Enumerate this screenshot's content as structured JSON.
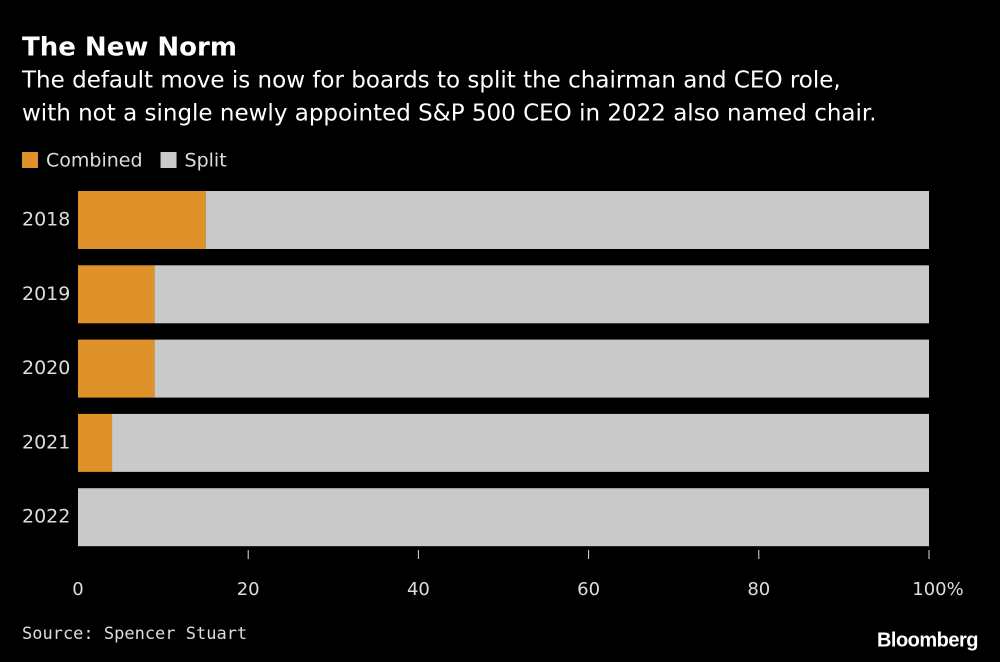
{
  "chart_data": {
    "type": "stacked-barh",
    "title": "The New Norm",
    "subtitle": [
      "The default move is now for boards to split the chairman and CEO role,",
      "with not a single newly appointed S&P 500 CEO in 2022 also named chair."
    ],
    "categories": [
      "2018",
      "2019",
      "2020",
      "2021",
      "2022"
    ],
    "series": [
      {
        "name": "Combined",
        "color": "#e0922a",
        "values": [
          15,
          9,
          9,
          4,
          0
        ]
      },
      {
        "name": "Split",
        "color": "#c9c9c9",
        "values": [
          85,
          91,
          91,
          96,
          100
        ]
      }
    ],
    "xlim": [
      0,
      100
    ],
    "xticks": [
      0,
      20,
      40,
      60,
      80,
      {
        "value": 100,
        "label": "100%"
      }
    ],
    "source": "Source: Spencer Stuart",
    "brand": "Bloomberg"
  }
}
